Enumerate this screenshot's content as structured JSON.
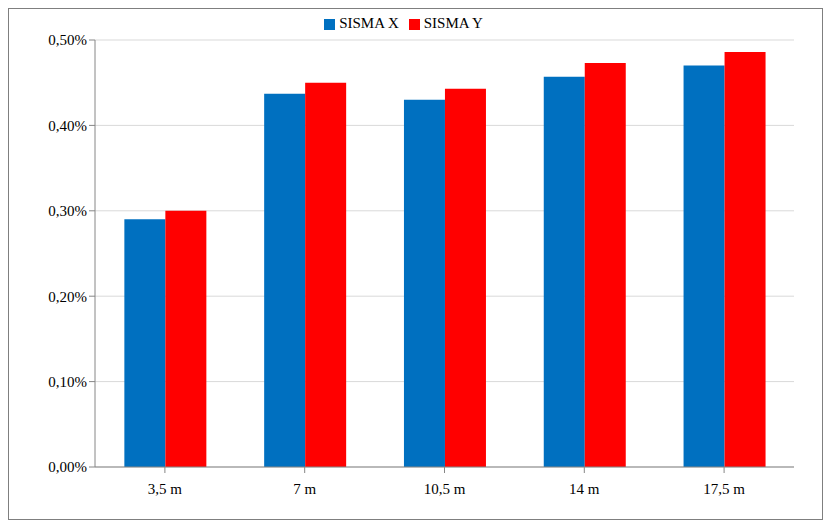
{
  "chart_data": {
    "type": "bar",
    "categories": [
      "3,5 m",
      "7 m",
      "10,5 m",
      "14 m",
      "17,5 m"
    ],
    "series": [
      {
        "name": "SISMA X",
        "color": "#0070c0",
        "values": [
          0.29,
          0.437,
          0.43,
          0.457,
          0.47
        ]
      },
      {
        "name": "SISMA Y",
        "color": "#ff0000",
        "values": [
          0.3,
          0.45,
          0.443,
          0.473,
          0.486
        ]
      }
    ],
    "ylim": [
      0,
      0.5
    ],
    "yticks": [
      {
        "value": 0,
        "label": "0,00%"
      },
      {
        "value": 0.1,
        "label": "0,10%"
      },
      {
        "value": 0.2,
        "label": "0,20%"
      },
      {
        "value": 0.3,
        "label": "0,30%"
      },
      {
        "value": 0.4,
        "label": "0,40%"
      },
      {
        "value": 0.5,
        "label": "0,50%"
      }
    ],
    "grid": true,
    "legend": "top"
  }
}
